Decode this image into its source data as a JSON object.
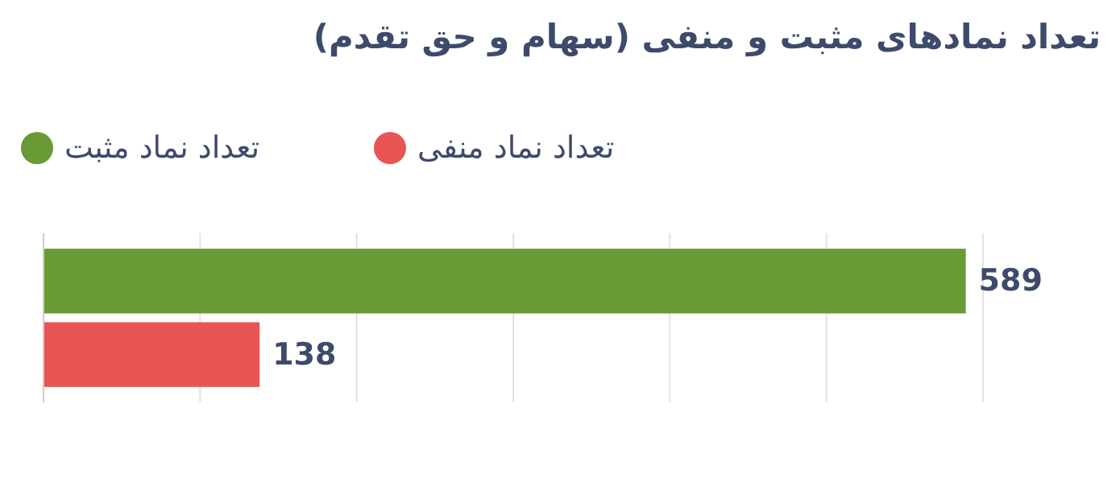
{
  "chart_data": {
    "type": "bar",
    "orientation": "horizontal",
    "title": "تعداد نمادهای مثبت و منفی (سهام و حق تقدم)",
    "categories": [
      null
    ],
    "series": [
      {
        "name": "تعداد نماد مثبت",
        "color": "#6a9a35",
        "values": [
          589
        ]
      },
      {
        "name": "تعداد نماد منفی",
        "color": "#e85555",
        "values": [
          138
        ]
      }
    ],
    "xlim": [
      0,
      600
    ],
    "xticks": [
      {
        "value": 0,
        "label": null
      },
      {
        "value": 100,
        "label": null
      },
      {
        "value": 200,
        "label": null
      },
      {
        "value": 300,
        "label": null
      },
      {
        "value": 400,
        "label": null
      },
      {
        "value": 500,
        "label": null
      },
      {
        "value": 600,
        "label": null
      }
    ],
    "grid": "x",
    "legend": "top left",
    "data_labels": true
  }
}
